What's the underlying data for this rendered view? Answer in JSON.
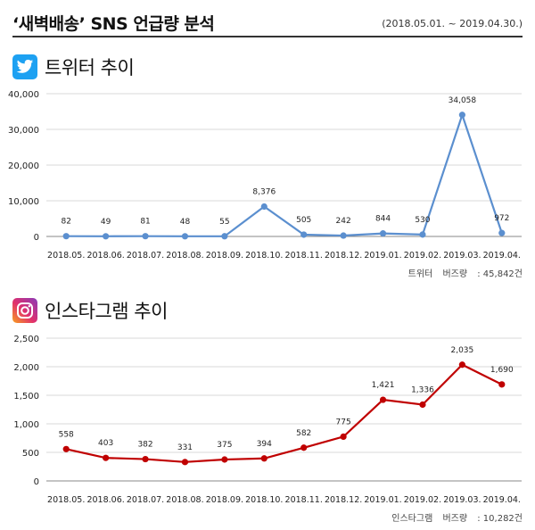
{
  "header": {
    "title": "‘새벽배송’ SNS 언급량 분석",
    "period": "(2018.05.01. ~ 2019.04.30.)"
  },
  "twitter": {
    "section_title": "트위터 추이",
    "icon": "twitter-icon",
    "brand_color": "#1da1f2",
    "line_color": "#5b8fcf",
    "total_label": "트위터",
    "total_kind": "버즈량",
    "total_value": ": 45,842건"
  },
  "instagram": {
    "section_title": "인스타그램 추이",
    "icon": "instagram-icon",
    "line_color": "#c00000",
    "total_label": "인스타그램",
    "total_kind": "버즈량",
    "total_value": ": 10,282건"
  },
  "chart_data": [
    {
      "type": "line",
      "title": "트위터 추이",
      "categories": [
        "2018.05.",
        "2018.06.",
        "2018.07.",
        "2018.08.",
        "2018.09.",
        "2018.10.",
        "2018.11.",
        "2018.12.",
        "2019.01.",
        "2019.02.",
        "2019.03.",
        "2019.04."
      ],
      "values": [
        82,
        49,
        81,
        48,
        55,
        8376,
        505,
        242,
        844,
        530,
        34058,
        972
      ],
      "data_labels": [
        "82",
        "49",
        "81",
        "48",
        "55",
        "8,376",
        "505",
        "242",
        "844",
        "530",
        "34,058",
        "972"
      ],
      "ylim": [
        0,
        40000
      ],
      "yticks": [
        0,
        10000,
        20000,
        30000,
        40000
      ],
      "ytick_labels": [
        "0",
        "10,000",
        "20,000",
        "30,000",
        "40,000"
      ],
      "grid": true,
      "xlabel": "",
      "ylabel": ""
    },
    {
      "type": "line",
      "title": "인스타그램 추이",
      "categories": [
        "2018.05.",
        "2018.06.",
        "2018.07.",
        "2018.08.",
        "2018.09.",
        "2018.10.",
        "2018.11.",
        "2018.12.",
        "2019.01.",
        "2019.02.",
        "2019.03.",
        "2019.04."
      ],
      "values": [
        558,
        403,
        382,
        331,
        375,
        394,
        582,
        775,
        1421,
        1336,
        2035,
        1690
      ],
      "data_labels": [
        "558",
        "403",
        "382",
        "331",
        "375",
        "394",
        "582",
        "775",
        "1,421",
        "1,336",
        "2,035",
        "1,690"
      ],
      "ylim": [
        0,
        2500
      ],
      "yticks": [
        0,
        500,
        1000,
        1500,
        2000,
        2500
      ],
      "ytick_labels": [
        "0",
        "500",
        "1,000",
        "1,500",
        "2,000",
        "2,500"
      ],
      "grid": true,
      "xlabel": "",
      "ylabel": ""
    }
  ]
}
